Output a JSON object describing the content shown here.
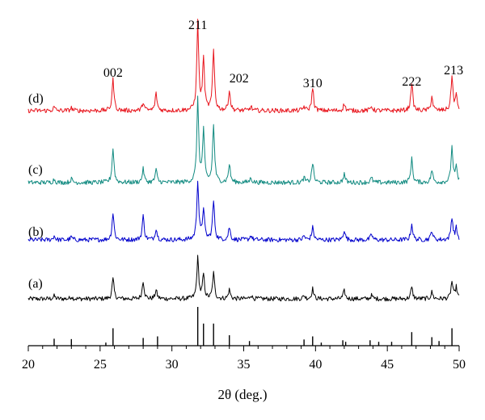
{
  "chart_data": {
    "type": "line",
    "xlabel": "2θ (deg.)",
    "xlim": [
      20,
      50
    ],
    "x_ticks": [
      20,
      25,
      30,
      35,
      40,
      45,
      50
    ],
    "y_axis_shown": false,
    "grid": false,
    "series": [
      {
        "name": "(a)",
        "color": "#000000",
        "baseline": 0.1,
        "peaks": [
          [
            21.8,
            0.05
          ],
          [
            23.0,
            0.04
          ],
          [
            25.9,
            0.35
          ],
          [
            28.0,
            0.32
          ],
          [
            28.9,
            0.15
          ],
          [
            31.8,
            0.72
          ],
          [
            32.2,
            0.42
          ],
          [
            32.9,
            0.45
          ],
          [
            34.0,
            0.16
          ],
          [
            35.5,
            0.07
          ],
          [
            39.2,
            0.06
          ],
          [
            39.8,
            0.18
          ],
          [
            42.0,
            0.14
          ],
          [
            43.9,
            0.06
          ],
          [
            46.7,
            0.2
          ],
          [
            48.1,
            0.12
          ],
          [
            49.5,
            0.3
          ],
          [
            49.8,
            0.2
          ]
        ]
      },
      {
        "name": "(b)",
        "color": "#0000cc",
        "baseline": 0.1,
        "peaks": [
          [
            21.8,
            0.07
          ],
          [
            23.0,
            0.05
          ],
          [
            25.9,
            0.48
          ],
          [
            28.0,
            0.42
          ],
          [
            28.9,
            0.2
          ],
          [
            31.8,
            1.05
          ],
          [
            32.2,
            0.55
          ],
          [
            32.9,
            0.68
          ],
          [
            34.0,
            0.22
          ],
          [
            35.5,
            0.08
          ],
          [
            39.2,
            0.07
          ],
          [
            39.8,
            0.22
          ],
          [
            42.0,
            0.18
          ],
          [
            43.9,
            0.1
          ],
          [
            46.7,
            0.28
          ],
          [
            48.1,
            0.17
          ],
          [
            49.5,
            0.4
          ],
          [
            49.8,
            0.2
          ]
        ]
      },
      {
        "name": "(c)",
        "color": "#108a80",
        "baseline": 0.1,
        "peaks": [
          [
            21.8,
            0.06
          ],
          [
            23.0,
            0.06
          ],
          [
            25.9,
            0.6
          ],
          [
            28.0,
            0.24
          ],
          [
            28.9,
            0.22
          ],
          [
            31.8,
            1.45
          ],
          [
            32.2,
            0.9
          ],
          [
            32.9,
            1.0
          ],
          [
            34.0,
            0.32
          ],
          [
            35.5,
            0.08
          ],
          [
            39.2,
            0.08
          ],
          [
            39.8,
            0.35
          ],
          [
            42.0,
            0.15
          ],
          [
            43.9,
            0.08
          ],
          [
            46.7,
            0.42
          ],
          [
            48.1,
            0.22
          ],
          [
            49.5,
            0.62
          ],
          [
            49.8,
            0.25
          ]
        ]
      },
      {
        "name": "(d)",
        "color": "#e8141c",
        "baseline": 0.1,
        "peaks": [
          [
            21.8,
            0.06
          ],
          [
            23.0,
            0.05
          ],
          [
            25.9,
            0.55
          ],
          [
            28.0,
            0.15
          ],
          [
            28.9,
            0.3
          ],
          [
            31.8,
            1.55
          ],
          [
            32.2,
            0.9
          ],
          [
            32.9,
            1.05
          ],
          [
            34.0,
            0.35
          ],
          [
            35.5,
            0.07
          ],
          [
            39.2,
            0.07
          ],
          [
            39.8,
            0.4
          ],
          [
            42.0,
            0.12
          ],
          [
            43.9,
            0.08
          ],
          [
            46.7,
            0.5
          ],
          [
            48.1,
            0.25
          ],
          [
            49.5,
            0.6
          ],
          [
            49.8,
            0.25
          ]
        ]
      }
    ],
    "peak_labels": [
      {
        "text": "002",
        "x": 25.9
      },
      {
        "text": "211",
        "x": 31.8
      },
      {
        "text": "202",
        "x": 34.0
      },
      {
        "text": "310",
        "x": 39.8
      },
      {
        "text": "222",
        "x": 46.7
      },
      {
        "text": "213",
        "x": 49.5
      }
    ],
    "reference_lines": [
      {
        "x": 21.8,
        "intensity": 0.18
      },
      {
        "x": 23.0,
        "intensity": 0.17
      },
      {
        "x": 25.4,
        "intensity": 0.08
      },
      {
        "x": 25.9,
        "intensity": 0.45
      },
      {
        "x": 28.0,
        "intensity": 0.2
      },
      {
        "x": 29.0,
        "intensity": 0.24
      },
      {
        "x": 31.8,
        "intensity": 1.0
      },
      {
        "x": 32.2,
        "intensity": 0.57
      },
      {
        "x": 32.9,
        "intensity": 0.57
      },
      {
        "x": 34.0,
        "intensity": 0.27
      },
      {
        "x": 35.4,
        "intensity": 0.12
      },
      {
        "x": 39.2,
        "intensity": 0.16
      },
      {
        "x": 39.8,
        "intensity": 0.24
      },
      {
        "x": 40.4,
        "intensity": 0.08
      },
      {
        "x": 41.9,
        "intensity": 0.14
      },
      {
        "x": 42.1,
        "intensity": 0.1
      },
      {
        "x": 43.8,
        "intensity": 0.14
      },
      {
        "x": 44.4,
        "intensity": 0.1
      },
      {
        "x": 45.3,
        "intensity": 0.1
      },
      {
        "x": 46.7,
        "intensity": 0.35
      },
      {
        "x": 48.1,
        "intensity": 0.22
      },
      {
        "x": 48.6,
        "intensity": 0.12
      },
      {
        "x": 49.5,
        "intensity": 0.45
      }
    ]
  }
}
